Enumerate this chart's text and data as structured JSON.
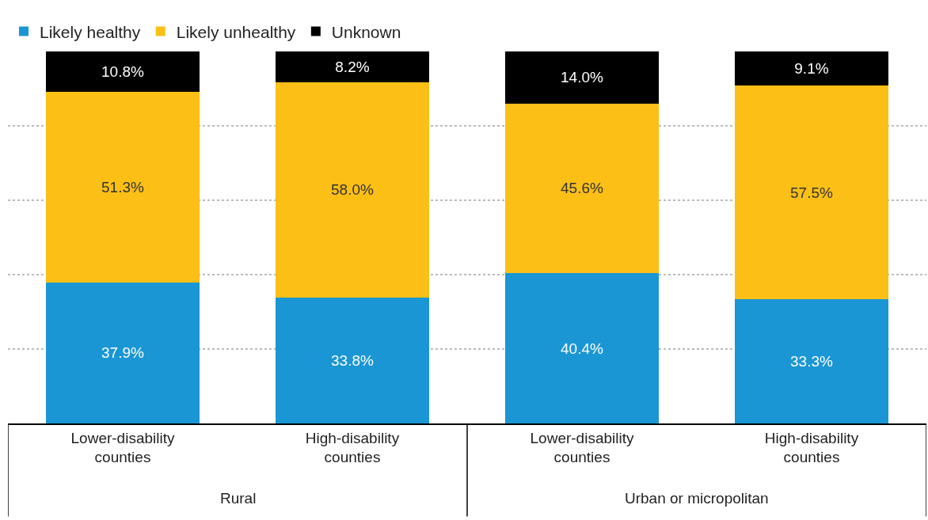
{
  "chart_data": {
    "type": "bar",
    "stacked": true,
    "legend": "top left",
    "grid": "y",
    "tick_labels": "x",
    "categories": [
      "Lower-disability counties",
      "High-disability counties",
      "Lower-disability counties",
      "High-disability counties"
    ],
    "series": [
      {
        "name": "Likely healthy",
        "color": "#1a96d4",
        "values": [
          37.9,
          33.8,
          40.4,
          33.3
        ],
        "value_labels": [
          "37.9%",
          "33.8%",
          "40.4%",
          "33.3%"
        ]
      },
      {
        "name": "Likely unhealthy",
        "color": "#fbbf16",
        "values": [
          51.3,
          58.0,
          45.6,
          57.5
        ],
        "value_labels": [
          "51.3%",
          "58.0%",
          "45.6%",
          "57.5%"
        ]
      },
      {
        "name": "Unknown",
        "color": "#000000",
        "values": [
          10.8,
          8.2,
          14.0,
          9.1
        ],
        "value_labels": [
          "10.8%",
          "8.2%",
          "14.0%",
          "9.1%"
        ]
      }
    ],
    "annotations": [
      "Rural",
      "Urban or micropolitan"
    ]
  }
}
